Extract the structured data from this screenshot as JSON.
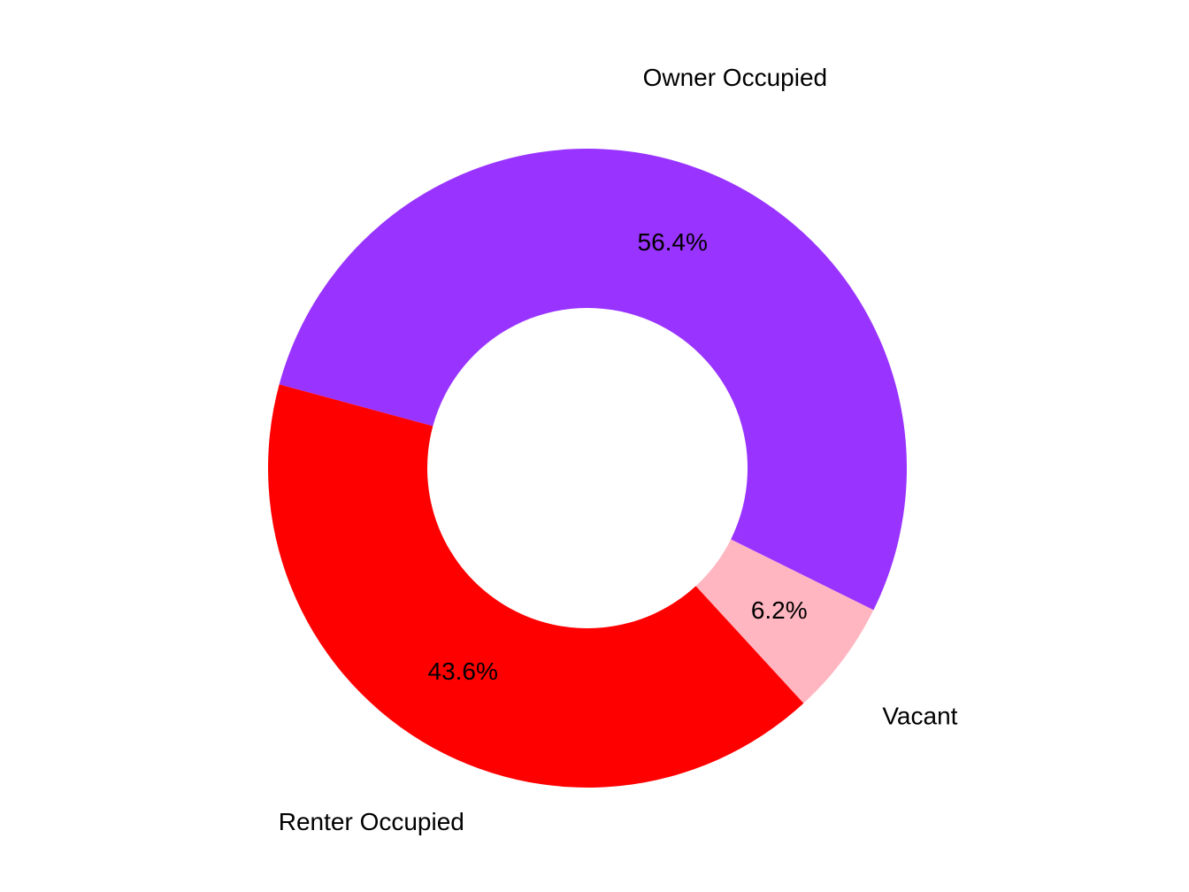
{
  "chart_data": {
    "type": "donut",
    "categories": [
      "Owner Occupied",
      "Vacant",
      "Renter Occupied"
    ],
    "values": [
      56.4,
      6.2,
      43.6
    ],
    "value_labels": [
      "56.4%",
      "6.2%",
      "43.6%"
    ],
    "colors": [
      "#9933ff",
      "#ffb6c1",
      "#ff0000"
    ]
  }
}
